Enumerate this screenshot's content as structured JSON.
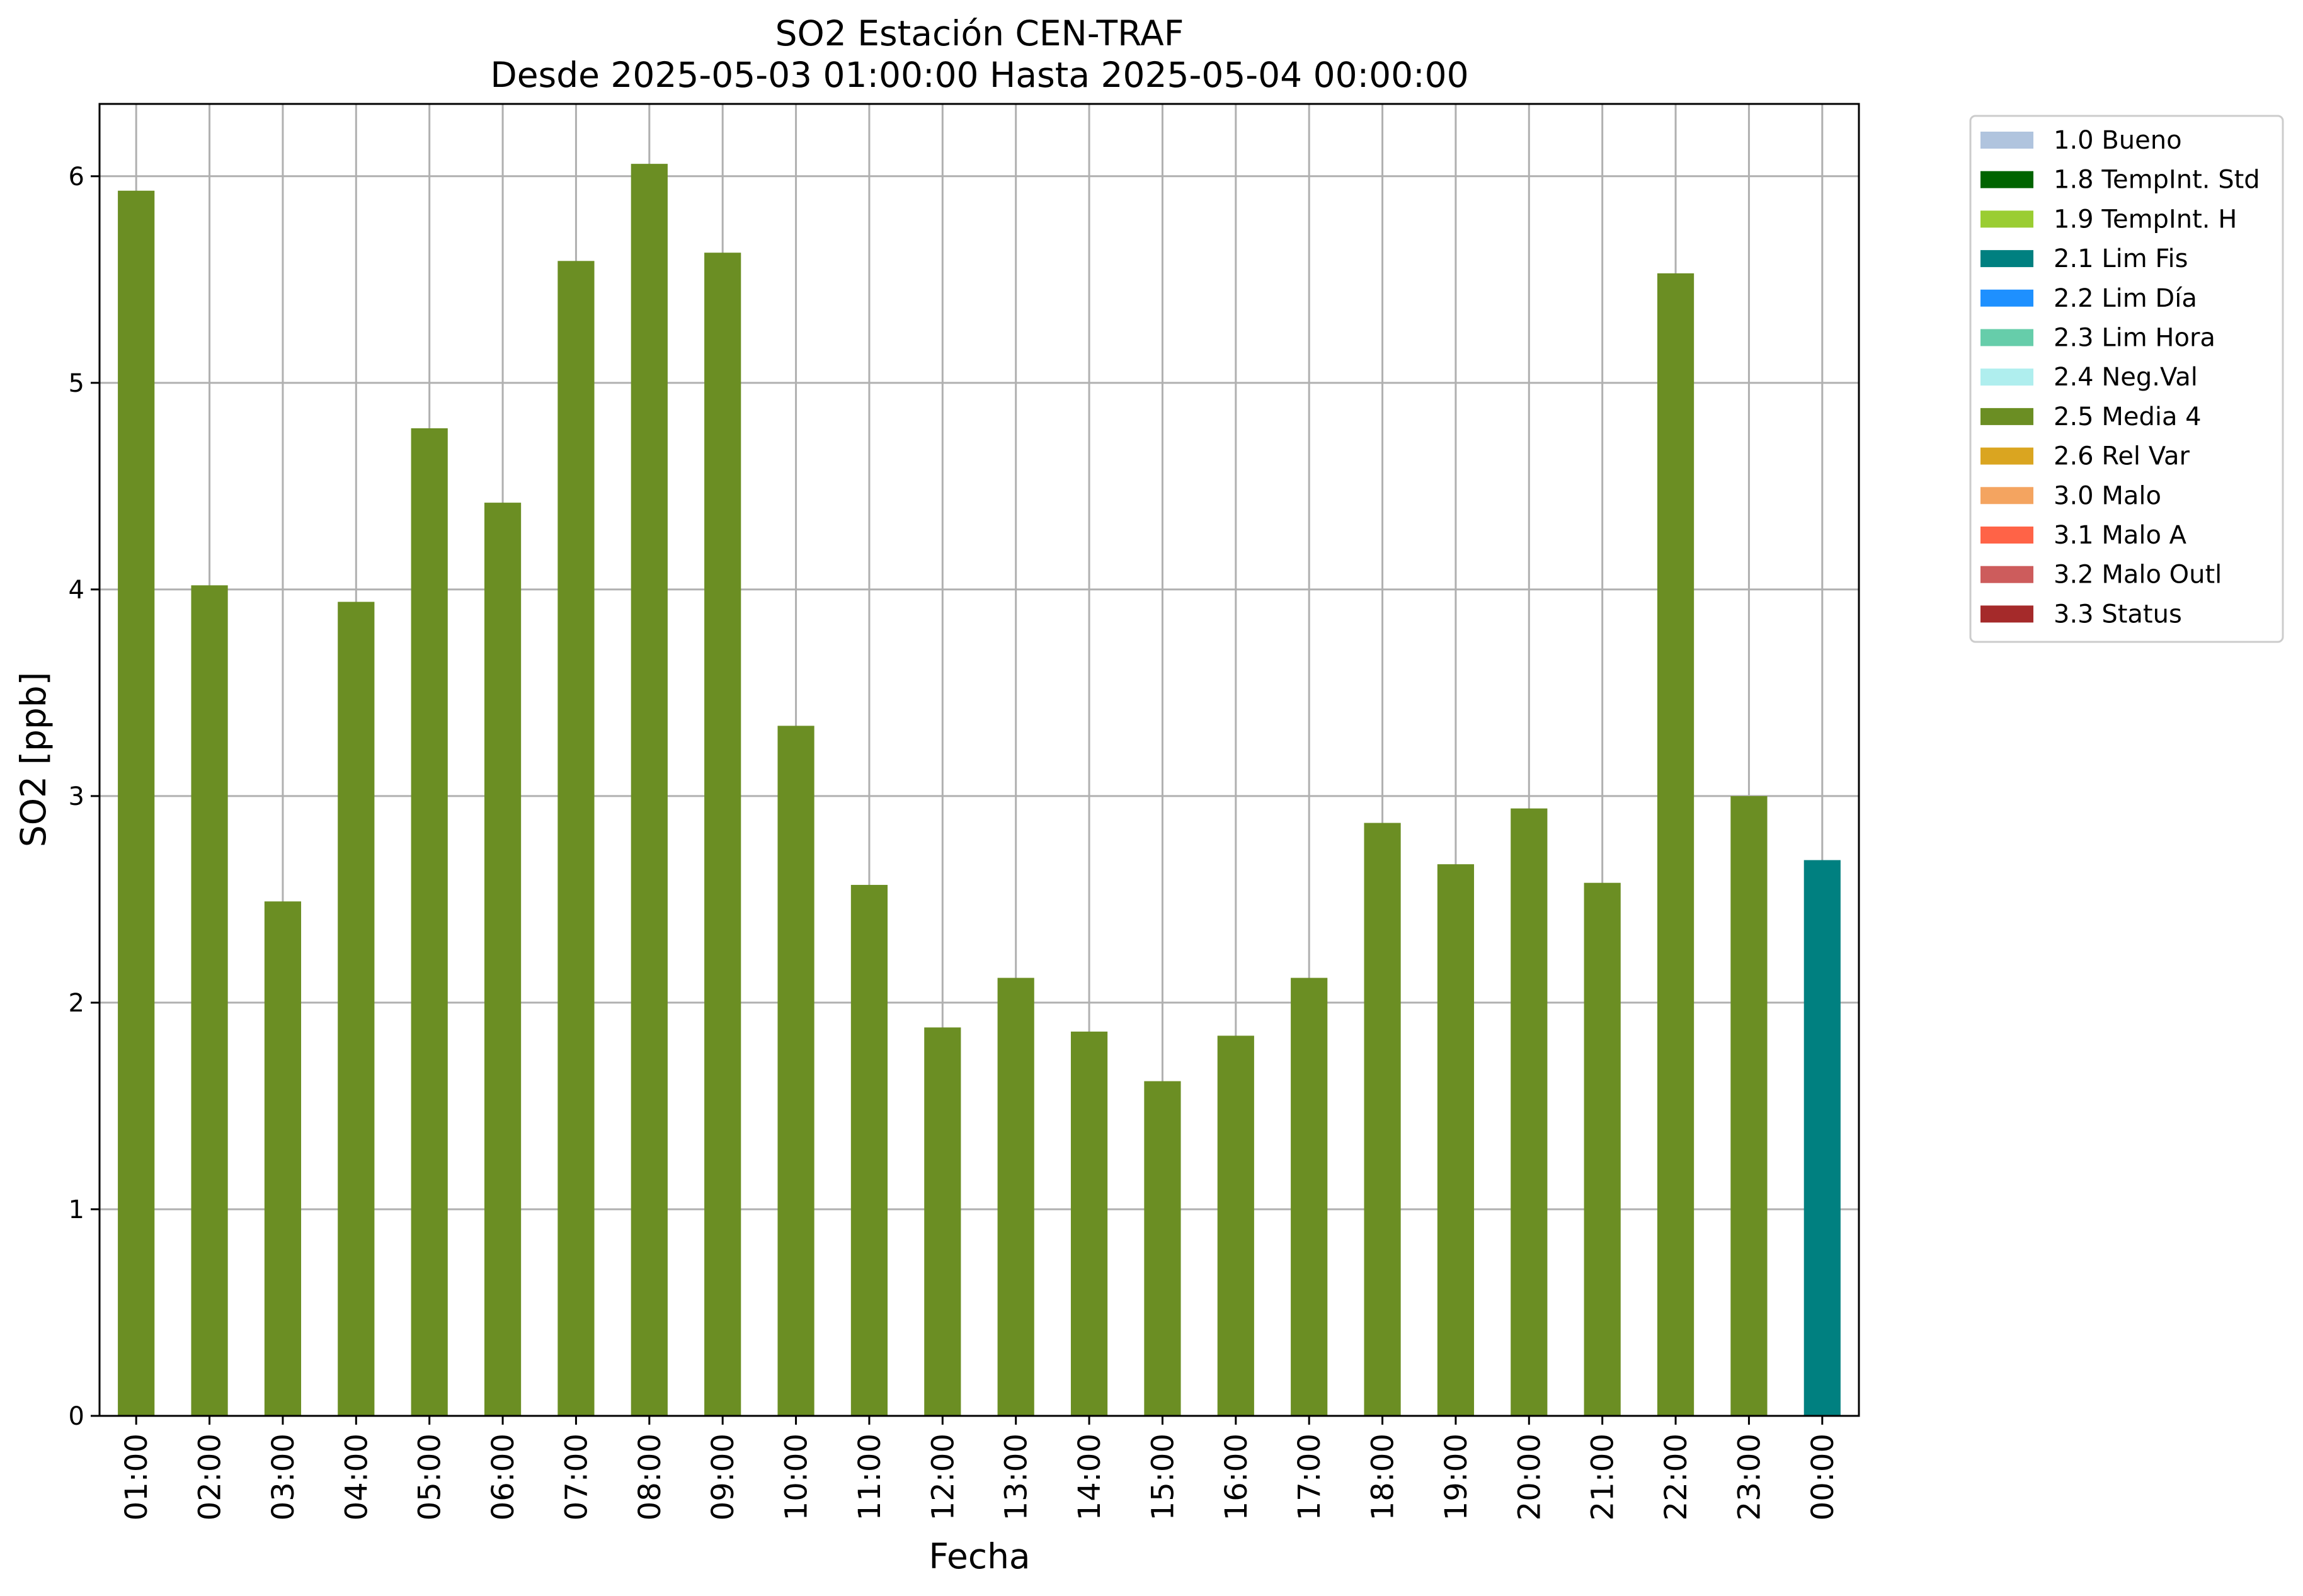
{
  "chart_data": {
    "type": "bar",
    "title": "SO2 Estación CEN-TRAF",
    "subtitle": "Desde 2025-05-03 01:00:00 Hasta 2025-05-04 00:00:00",
    "xlabel": "Fecha",
    "ylabel": "SO2 [ppb]",
    "ylim": [
      0,
      6.35
    ],
    "yticks": [
      "0",
      "1",
      "2",
      "3",
      "4",
      "5",
      "6"
    ],
    "grid": true,
    "legend_position": "outside-top-right",
    "categories": [
      "01:00",
      "02:00",
      "03:00",
      "04:00",
      "05:00",
      "06:00",
      "07:00",
      "08:00",
      "09:00",
      "10:00",
      "11:00",
      "12:00",
      "13:00",
      "14:00",
      "15:00",
      "16:00",
      "17:00",
      "18:00",
      "19:00",
      "20:00",
      "21:00",
      "22:00",
      "23:00",
      "00:00"
    ],
    "values": [
      5.93,
      4.02,
      2.49,
      3.94,
      4.78,
      4.42,
      5.59,
      6.06,
      5.63,
      3.34,
      2.57,
      1.88,
      2.12,
      1.86,
      1.62,
      1.84,
      2.12,
      2.87,
      2.67,
      2.94,
      2.58,
      5.53,
      3.0,
      2.69
    ],
    "flags": [
      "2.5 Media 4",
      "2.5 Media 4",
      "2.5 Media 4",
      "2.5 Media 4",
      "2.5 Media 4",
      "2.5 Media 4",
      "2.5 Media 4",
      "2.5 Media 4",
      "2.5 Media 4",
      "2.5 Media 4",
      "2.5 Media 4",
      "2.5 Media 4",
      "2.5 Media 4",
      "2.5 Media 4",
      "2.5 Media 4",
      "2.5 Media 4",
      "2.5 Media 4",
      "2.5 Media 4",
      "2.5 Media 4",
      "2.5 Media 4",
      "2.5 Media 4",
      "2.5 Media 4",
      "2.5 Media 4",
      "2.1 Lim Fis"
    ],
    "legend": [
      {
        "label": "1.0 Bueno",
        "color": "#b0c4de"
      },
      {
        "label": "1.8 TempInt. Std",
        "color": "#006400"
      },
      {
        "label": "1.9 TempInt. H",
        "color": "#9acd32"
      },
      {
        "label": "2.1 Lim Fis",
        "color": "#008080"
      },
      {
        "label": "2.2 Lim Día",
        "color": "#1e90ff"
      },
      {
        "label": "2.3 Lim Hora",
        "color": "#66cdaa"
      },
      {
        "label": "2.4 Neg.Val",
        "color": "#afeeee"
      },
      {
        "label": "2.5 Media 4",
        "color": "#6b8e23"
      },
      {
        "label": "2.6 Rel Var",
        "color": "#daa520"
      },
      {
        "label": "3.0 Malo",
        "color": "#f4a460"
      },
      {
        "label": "3.1 Malo A",
        "color": "#ff6347"
      },
      {
        "label": "3.2 Malo Outl",
        "color": "#cd5c5c"
      },
      {
        "label": "3.3 Status",
        "color": "#a52a2a"
      }
    ]
  }
}
